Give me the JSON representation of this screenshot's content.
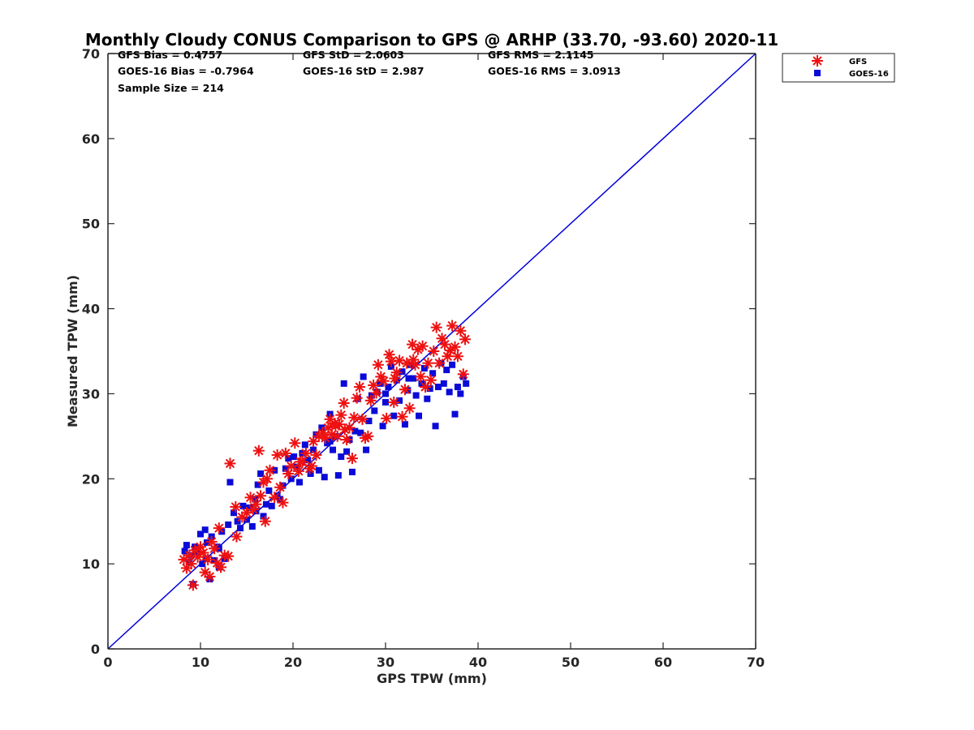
{
  "chart_data": {
    "type": "scatter",
    "title": "Monthly Cloudy CONUS Comparison to GPS @ ARHP (33.70, -93.60) 2020-11",
    "xlabel": "GPS TPW (mm)",
    "ylabel": "Measured TPW (mm)",
    "xlim": [
      0,
      70
    ],
    "ylim": [
      0,
      70
    ],
    "x_ticks": [
      "0",
      "10",
      "20",
      "30",
      "40",
      "50",
      "60",
      "70"
    ],
    "y_ticks": [
      "0",
      "10",
      "20",
      "30",
      "40",
      "50",
      "60",
      "70"
    ],
    "grid": false,
    "legend_position": "top-right",
    "stats": [
      "GFS Bias = 0.4757",
      "GFS StD = 2.0603",
      "GFS RMS = 2.1145",
      "GOES-16 Bias = -0.7964",
      "GOES-16 StD = 2.987",
      "GOES-16 RMS = 3.0913",
      "Sample Size = 214"
    ],
    "reference_line": {
      "x": [
        0,
        70
      ],
      "y": [
        0,
        70
      ],
      "color": "#0000dd"
    },
    "series": [
      {
        "name": "GFS",
        "marker": "asterisk",
        "color": "#ee1111",
        "points": [
          [
            8.2,
            10.5
          ],
          [
            8.5,
            9.5
          ],
          [
            8.8,
            11.0
          ],
          [
            9.0,
            10.0
          ],
          [
            9.2,
            7.5
          ],
          [
            9.4,
            11.6
          ],
          [
            9.7,
            10.8
          ],
          [
            10.0,
            12.0
          ],
          [
            10.3,
            11.3
          ],
          [
            10.5,
            9.0
          ],
          [
            10.8,
            10.5
          ],
          [
            11.0,
            8.5
          ],
          [
            11.2,
            12.6
          ],
          [
            11.5,
            11.8
          ],
          [
            11.8,
            10.1
          ],
          [
            12.0,
            14.2
          ],
          [
            12.2,
            9.6
          ],
          [
            12.6,
            11.0
          ],
          [
            13.0,
            10.9
          ],
          [
            13.2,
            21.8
          ],
          [
            13.8,
            16.7
          ],
          [
            13.9,
            13.2
          ],
          [
            14.5,
            15.5
          ],
          [
            15.0,
            16.0
          ],
          [
            15.4,
            17.8
          ],
          [
            15.7,
            16.4
          ],
          [
            16.0,
            17.0
          ],
          [
            16.3,
            23.3
          ],
          [
            16.5,
            18.0
          ],
          [
            16.8,
            19.6
          ],
          [
            17.0,
            15.0
          ],
          [
            17.2,
            20.0
          ],
          [
            17.5,
            21.0
          ],
          [
            18.0,
            17.8
          ],
          [
            18.3,
            22.8
          ],
          [
            18.6,
            19.0
          ],
          [
            18.9,
            17.2
          ],
          [
            19.2,
            23.0
          ],
          [
            19.5,
            20.6
          ],
          [
            19.8,
            21.5
          ],
          [
            20.2,
            24.2
          ],
          [
            20.6,
            20.9
          ],
          [
            21.0,
            22.0
          ],
          [
            21.4,
            23.0
          ],
          [
            21.8,
            21.2
          ],
          [
            22.2,
            24.4
          ],
          [
            22.5,
            22.8
          ],
          [
            22.8,
            25.0
          ],
          [
            23.2,
            25.4
          ],
          [
            23.5,
            24.8
          ],
          [
            23.8,
            26.0
          ],
          [
            24.0,
            27.0
          ],
          [
            24.2,
            25.2
          ],
          [
            24.5,
            26.5
          ],
          [
            24.8,
            25.0
          ],
          [
            25.0,
            26.4
          ],
          [
            25.2,
            27.5
          ],
          [
            25.5,
            28.9
          ],
          [
            25.8,
            24.6
          ],
          [
            26.1,
            26.0
          ],
          [
            26.4,
            22.4
          ],
          [
            26.6,
            27.2
          ],
          [
            26.9,
            29.5
          ],
          [
            27.2,
            30.8
          ],
          [
            27.5,
            27.0
          ],
          [
            27.8,
            24.8
          ],
          [
            28.1,
            25.0
          ],
          [
            28.4,
            29.2
          ],
          [
            28.7,
            31.0
          ],
          [
            29.0,
            30.1
          ],
          [
            29.2,
            33.4
          ],
          [
            29.5,
            32.0
          ],
          [
            29.8,
            31.5
          ],
          [
            30.1,
            27.1
          ],
          [
            30.4,
            34.6
          ],
          [
            30.6,
            33.8
          ],
          [
            30.9,
            29.0
          ],
          [
            31.2,
            32.5
          ],
          [
            31.5,
            33.9
          ],
          [
            31.8,
            27.3
          ],
          [
            32.1,
            30.5
          ],
          [
            32.3,
            33.6
          ],
          [
            32.6,
            28.3
          ],
          [
            32.9,
            35.8
          ],
          [
            33.2,
            33.4
          ],
          [
            33.5,
            35.2
          ],
          [
            33.8,
            32.0
          ],
          [
            34.0,
            35.6
          ],
          [
            34.3,
            30.8
          ],
          [
            34.6,
            33.6
          ],
          [
            34.9,
            31.6
          ],
          [
            35.2,
            35.0
          ],
          [
            35.5,
            37.8
          ],
          [
            35.8,
            33.6
          ],
          [
            36.1,
            36.5
          ],
          [
            36.4,
            35.8
          ],
          [
            36.7,
            34.4
          ],
          [
            37.0,
            35.1
          ],
          [
            37.2,
            38.0
          ],
          [
            37.5,
            35.5
          ],
          [
            37.8,
            34.4
          ],
          [
            38.1,
            37.4
          ],
          [
            38.4,
            32.3
          ],
          [
            38.6,
            36.4
          ],
          [
            25.6,
            25.8
          ],
          [
            24.6,
            26.2
          ],
          [
            20.8,
            22.0
          ],
          [
            22.0,
            21.5
          ],
          [
            31.0,
            31.8
          ],
          [
            33.0,
            34.0
          ]
        ]
      },
      {
        "name": "GOES-16",
        "marker": "square",
        "color": "#0a0ad8",
        "points": [
          [
            8.3,
            11.5
          ],
          [
            8.5,
            12.2
          ],
          [
            8.8,
            10.2
          ],
          [
            9.0,
            11.0
          ],
          [
            9.2,
            7.6
          ],
          [
            9.4,
            12.0
          ],
          [
            9.7,
            11.4
          ],
          [
            10.0,
            13.5
          ],
          [
            10.2,
            10.0
          ],
          [
            10.5,
            14.0
          ],
          [
            10.7,
            12.5
          ],
          [
            11.0,
            8.2
          ],
          [
            11.2,
            13.2
          ],
          [
            11.5,
            10.4
          ],
          [
            11.8,
            12.0
          ],
          [
            12.0,
            9.6
          ],
          [
            12.3,
            13.8
          ],
          [
            12.6,
            10.6
          ],
          [
            13.0,
            14.6
          ],
          [
            13.2,
            19.6
          ],
          [
            13.6,
            16.0
          ],
          [
            14.0,
            15.0
          ],
          [
            14.3,
            14.2
          ],
          [
            14.6,
            16.8
          ],
          [
            15.0,
            15.2
          ],
          [
            15.3,
            16.6
          ],
          [
            15.6,
            14.4
          ],
          [
            15.9,
            17.6
          ],
          [
            16.2,
            19.3
          ],
          [
            16.5,
            20.6
          ],
          [
            16.8,
            15.6
          ],
          [
            17.1,
            17.0
          ],
          [
            17.4,
            18.6
          ],
          [
            17.7,
            16.8
          ],
          [
            18.0,
            21.0
          ],
          [
            18.3,
            18.0
          ],
          [
            18.6,
            17.6
          ],
          [
            18.9,
            19.2
          ],
          [
            19.2,
            21.2
          ],
          [
            19.5,
            22.4
          ],
          [
            19.8,
            20.0
          ],
          [
            20.1,
            22.6
          ],
          [
            20.4,
            21.4
          ],
          [
            20.7,
            19.6
          ],
          [
            21.0,
            23.0
          ],
          [
            21.3,
            24.0
          ],
          [
            21.6,
            22.2
          ],
          [
            21.9,
            20.6
          ],
          [
            22.2,
            23.4
          ],
          [
            22.5,
            25.2
          ],
          [
            22.8,
            21.0
          ],
          [
            23.1,
            26.0
          ],
          [
            23.4,
            20.2
          ],
          [
            23.7,
            24.2
          ],
          [
            24.0,
            27.6
          ],
          [
            24.3,
            23.4
          ],
          [
            24.6,
            25.0
          ],
          [
            24.9,
            20.4
          ],
          [
            25.2,
            22.6
          ],
          [
            25.5,
            31.2
          ],
          [
            25.8,
            23.2
          ],
          [
            26.1,
            24.6
          ],
          [
            26.4,
            20.8
          ],
          [
            26.7,
            25.6
          ],
          [
            27.0,
            29.4
          ],
          [
            27.3,
            25.4
          ],
          [
            27.6,
            32.0
          ],
          [
            27.9,
            23.4
          ],
          [
            28.2,
            26.8
          ],
          [
            28.5,
            29.8
          ],
          [
            28.8,
            28.0
          ],
          [
            29.1,
            30.2
          ],
          [
            29.4,
            31.2
          ],
          [
            29.7,
            26.2
          ],
          [
            30.0,
            29.0
          ],
          [
            30.3,
            30.8
          ],
          [
            30.6,
            33.2
          ],
          [
            30.9,
            27.4
          ],
          [
            31.2,
            31.6
          ],
          [
            31.5,
            29.2
          ],
          [
            31.8,
            32.6
          ],
          [
            32.1,
            26.4
          ],
          [
            32.4,
            30.4
          ],
          [
            32.7,
            33.4
          ],
          [
            33.0,
            31.8
          ],
          [
            33.3,
            29.8
          ],
          [
            33.6,
            27.4
          ],
          [
            33.9,
            31.2
          ],
          [
            34.2,
            33.0
          ],
          [
            34.5,
            29.4
          ],
          [
            34.8,
            30.6
          ],
          [
            35.1,
            32.4
          ],
          [
            35.4,
            26.2
          ],
          [
            35.7,
            30.8
          ],
          [
            36.0,
            33.6
          ],
          [
            36.3,
            31.2
          ],
          [
            36.6,
            32.8
          ],
          [
            36.9,
            30.2
          ],
          [
            37.2,
            33.4
          ],
          [
            37.5,
            27.6
          ],
          [
            37.8,
            30.8
          ],
          [
            38.1,
            30.0
          ],
          [
            38.4,
            32.0
          ],
          [
            38.7,
            31.2
          ],
          [
            12.0,
            11.8
          ],
          [
            10.6,
            10.6
          ],
          [
            16.0,
            16.2
          ],
          [
            24.0,
            24.4
          ],
          [
            30.0,
            30.0
          ],
          [
            32.5,
            31.8
          ]
        ]
      }
    ]
  }
}
